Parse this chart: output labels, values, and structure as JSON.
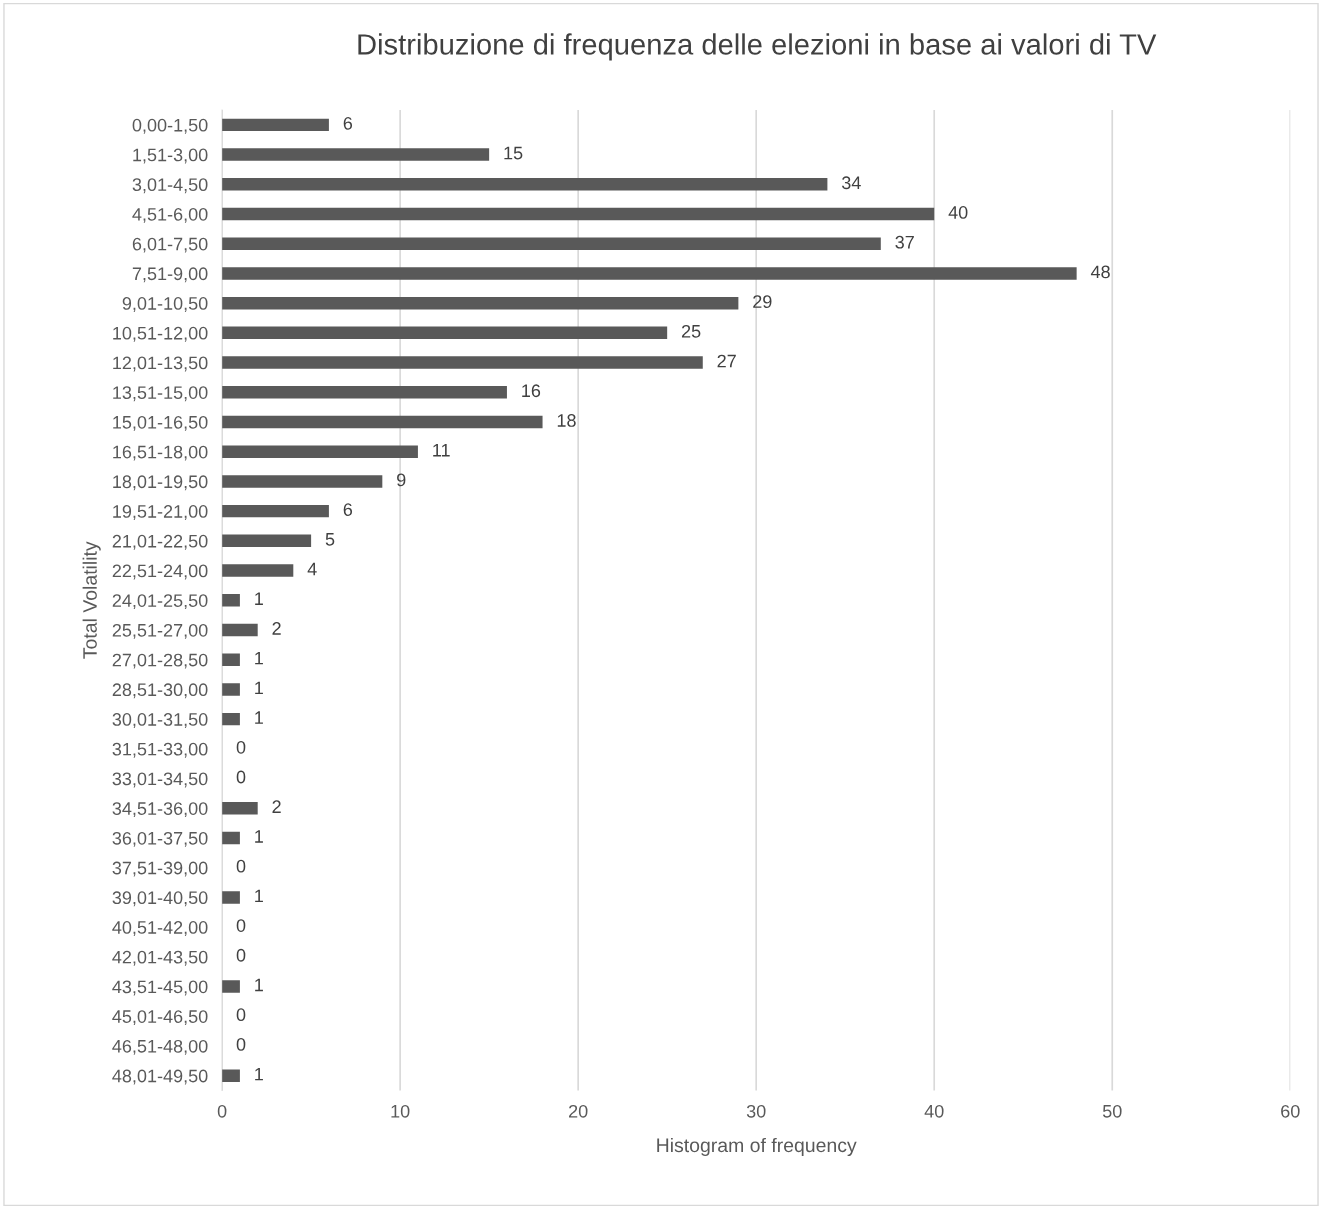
{
  "chart_data": {
    "type": "bar",
    "orientation": "horizontal",
    "title": "Distribuzione di frequenza delle elezioni in base ai valori di TV",
    "xlabel": "Histogram of frequency",
    "ylabel": "Total Volatility",
    "categories": [
      "0,00-1,50",
      "1,51-3,00",
      "3,01-4,50",
      "4,51-6,00",
      "6,01-7,50",
      "7,51-9,00",
      "9,01-10,50",
      "10,51-12,00",
      "12,01-13,50",
      "13,51-15,00",
      "15,01-16,50",
      "16,51-18,00",
      "18,01-19,50",
      "19,51-21,00",
      "21,01-22,50",
      "22,51-24,00",
      "24,01-25,50",
      "25,51-27,00",
      "27,01-28,50",
      "28,51-30,00",
      "30,01-31,50",
      "31,51-33,00",
      "33,01-34,50",
      "34,51-36,00",
      "36,01-37,50",
      "37,51-39,00",
      "39,01-40,50",
      "40,51-42,00",
      "42,01-43,50",
      "43,51-45,00",
      "45,01-46,50",
      "46,51-48,00",
      "48,01-49,50"
    ],
    "values": [
      6,
      15,
      34,
      40,
      37,
      48,
      29,
      25,
      27,
      16,
      18,
      11,
      9,
      6,
      5,
      4,
      1,
      2,
      1,
      1,
      1,
      0,
      0,
      2,
      1,
      0,
      1,
      0,
      0,
      1,
      0,
      0,
      1
    ],
    "color": "#595959",
    "xlim": [
      0,
      60
    ],
    "xticks": [
      0,
      10,
      20,
      30,
      40,
      50,
      60
    ],
    "grid": "x",
    "data_labels": true,
    "legend": false
  }
}
